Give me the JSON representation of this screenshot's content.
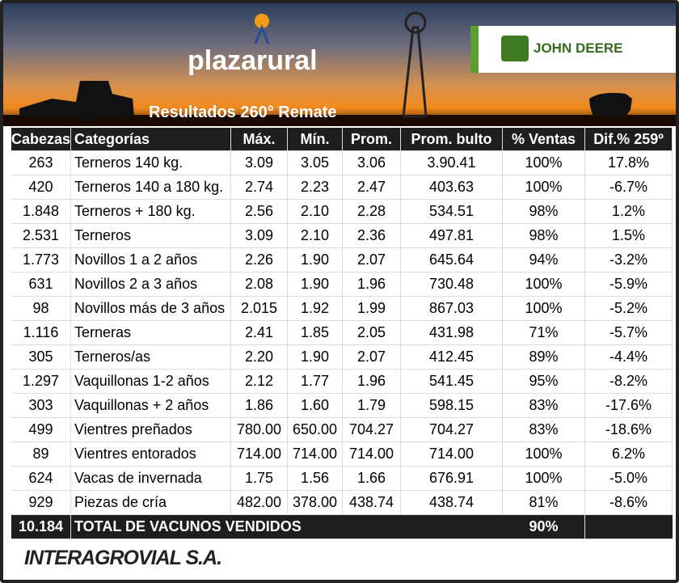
{
  "header": {
    "logo": "plazarural",
    "sponsor": "JOHN DEERE",
    "title": "Resultados 260° Remate"
  },
  "table": {
    "headers": [
      "Cabezas",
      "Categorías",
      "Máx.",
      "Mín.",
      "Prom.",
      "Prom. bulto",
      "% Ventas",
      "Dif.% 259º"
    ],
    "rows": [
      [
        "263",
        "Terneros 140 kg.",
        "3.09",
        "3.05",
        "3.06",
        "3.90.41",
        "100%",
        "17.8%"
      ],
      [
        "420",
        "Terneros 140 a 180 kg.",
        "2.74",
        "2.23",
        "2.47",
        "403.63",
        "100%",
        "-6.7%"
      ],
      [
        "1.848",
        "Terneros + 180 kg.",
        "2.56",
        "2.10",
        "2.28",
        "534.51",
        "98%",
        "1.2%"
      ],
      [
        "2.531",
        "Terneros",
        "3.09",
        "2.10",
        "2.36",
        "497.81",
        "98%",
        "1.5%"
      ],
      [
        "1.773",
        "Novillos 1 a 2 años",
        "2.26",
        "1.90",
        "2.07",
        "645.64",
        "94%",
        "-3.2%"
      ],
      [
        "631",
        "Novillos 2 a 3 años",
        "2.08",
        "1.90",
        "1.96",
        "730.48",
        "100%",
        "-5.9%"
      ],
      [
        "98",
        "Novillos más de 3 años",
        "2.015",
        "1.92",
        "1.99",
        "867.03",
        "100%",
        "-5.2%"
      ],
      [
        "1.116",
        "Terneras",
        "2.41",
        "1.85",
        "2.05",
        "431.98",
        "71%",
        "-5.7%"
      ],
      [
        "305",
        "Terneros/as",
        "2.20",
        "1.90",
        "2.07",
        "412.45",
        "89%",
        "-4.4%"
      ],
      [
        "1.297",
        "Vaquillonas 1-2 años",
        "2.12",
        "1.77",
        "1.96",
        "541.45",
        "95%",
        "-8.2%"
      ],
      [
        "303",
        "Vaquillonas + 2 años",
        "1.86",
        "1.60",
        "1.79",
        "598.15",
        "83%",
        "-17.6%"
      ],
      [
        "499",
        "Vientres preñados",
        "780.00",
        "650.00",
        "704.27",
        "704.27",
        "83%",
        "-18.6%"
      ],
      [
        "89",
        "Vientres entorados",
        "714.00",
        "714.00",
        "714.00",
        "714.00",
        "100%",
        "6.2%"
      ],
      [
        "624",
        "Vacas de invernada",
        "1.75",
        "1.56",
        "1.66",
        "676.91",
        "100%",
        "-5.0%"
      ],
      [
        "929",
        "Piezas de cría",
        "482.00",
        "378.00",
        "438.74",
        "438.74",
        "81%",
        "-8.6%"
      ]
    ],
    "total": {
      "heads": "10.184",
      "label": "TOTAL DE VACUNOS VENDIDOS",
      "sales": "90%"
    }
  },
  "footer": {
    "company": "INTERAGROVIAL S.A."
  }
}
